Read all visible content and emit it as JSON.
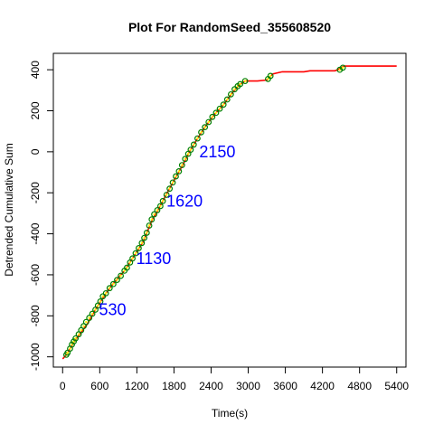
{
  "chart_data": {
    "type": "line",
    "title": "Plot For RandomSeed_355608520",
    "xlabel": "Time(s)",
    "ylabel": "Detrended Cumulative Sum",
    "xlim": [
      -150,
      5550
    ],
    "ylim": [
      -1050,
      480
    ],
    "x_ticks": [
      0,
      600,
      1200,
      1800,
      2400,
      3000,
      3600,
      4200,
      4800,
      5400
    ],
    "y_ticks": [
      -1000,
      -800,
      -600,
      -400,
      -200,
      0,
      200,
      400
    ],
    "grid": false,
    "line_color": "#ff0000",
    "marker_color": "#008000",
    "marker_fill_color": "#ffff00",
    "annotation_color": "#0000ff",
    "series": [
      {
        "values": [
          [
            0,
            -1010
          ],
          [
            60,
            -990
          ],
          [
            120,
            -960
          ],
          [
            200,
            -920
          ],
          [
            300,
            -880
          ],
          [
            400,
            -840
          ],
          [
            530,
            -770
          ],
          [
            700,
            -690
          ],
          [
            800,
            -650
          ],
          [
            1000,
            -580
          ],
          [
            1130,
            -520
          ],
          [
            1300,
            -440
          ],
          [
            1450,
            -330
          ],
          [
            1550,
            -280
          ],
          [
            1620,
            -240
          ],
          [
            1800,
            -140
          ],
          [
            1950,
            -60
          ],
          [
            2050,
            0
          ],
          [
            2150,
            50
          ],
          [
            2300,
            120
          ],
          [
            2450,
            180
          ],
          [
            2600,
            230
          ],
          [
            2750,
            290
          ],
          [
            2850,
            325
          ],
          [
            2950,
            345
          ],
          [
            3150,
            345
          ],
          [
            3300,
            350
          ],
          [
            3400,
            380
          ],
          [
            3550,
            390
          ],
          [
            3900,
            390
          ],
          [
            4000,
            395
          ],
          [
            4400,
            395
          ],
          [
            4450,
            400
          ],
          [
            4550,
            418
          ],
          [
            5400,
            418
          ]
        ]
      }
    ],
    "markers": [
      [
        60,
        -990
      ],
      [
        80,
        -980
      ],
      [
        120,
        -960
      ],
      [
        150,
        -940
      ],
      [
        180,
        -925
      ],
      [
        210,
        -910
      ],
      [
        260,
        -890
      ],
      [
        300,
        -870
      ],
      [
        340,
        -850
      ],
      [
        380,
        -830
      ],
      [
        430,
        -810
      ],
      [
        480,
        -790
      ],
      [
        530,
        -770
      ],
      [
        570,
        -750
      ],
      [
        610,
        -730
      ],
      [
        650,
        -705
      ],
      [
        700,
        -690
      ],
      [
        760,
        -665
      ],
      [
        820,
        -645
      ],
      [
        880,
        -625
      ],
      [
        940,
        -605
      ],
      [
        1000,
        -580
      ],
      [
        1040,
        -565
      ],
      [
        1090,
        -540
      ],
      [
        1130,
        -520
      ],
      [
        1180,
        -495
      ],
      [
        1230,
        -470
      ],
      [
        1280,
        -445
      ],
      [
        1320,
        -420
      ],
      [
        1360,
        -395
      ],
      [
        1400,
        -360
      ],
      [
        1440,
        -330
      ],
      [
        1480,
        -305
      ],
      [
        1530,
        -285
      ],
      [
        1580,
        -265
      ],
      [
        1620,
        -240
      ],
      [
        1680,
        -210
      ],
      [
        1730,
        -180
      ],
      [
        1780,
        -150
      ],
      [
        1830,
        -120
      ],
      [
        1880,
        -95
      ],
      [
        1930,
        -65
      ],
      [
        1980,
        -35
      ],
      [
        2030,
        -10
      ],
      [
        2070,
        10
      ],
      [
        2120,
        35
      ],
      [
        2180,
        65
      ],
      [
        2240,
        95
      ],
      [
        2300,
        120
      ],
      [
        2360,
        145
      ],
      [
        2420,
        170
      ],
      [
        2480,
        190
      ],
      [
        2540,
        210
      ],
      [
        2600,
        230
      ],
      [
        2660,
        255
      ],
      [
        2720,
        280
      ],
      [
        2780,
        305
      ],
      [
        2830,
        320
      ],
      [
        2870,
        330
      ],
      [
        2950,
        345
      ],
      [
        3320,
        355
      ],
      [
        3360,
        370
      ],
      [
        4480,
        400
      ],
      [
        4530,
        410
      ]
    ],
    "annotations": [
      {
        "text": "530",
        "x": 530,
        "y": -770
      },
      {
        "text": "1130",
        "x": 1130,
        "y": -520
      },
      {
        "text": "1620",
        "x": 1620,
        "y": -240
      },
      {
        "text": "2150",
        "x": 2150,
        "y": 0
      }
    ]
  }
}
